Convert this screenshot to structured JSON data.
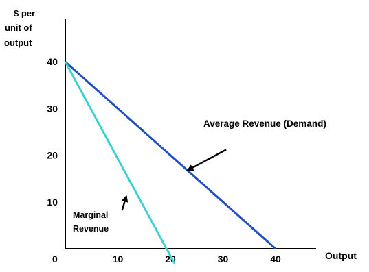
{
  "chart_data": {
    "type": "line",
    "ylabel": [
      "$ per",
      "unit of",
      "output"
    ],
    "xlabel": "Output",
    "origin_label": "0",
    "x_ticks": [
      {
        "value": 10,
        "label": "10"
      },
      {
        "value": 20,
        "label": "20"
      },
      {
        "value": 30,
        "label": "30"
      },
      {
        "value": 40,
        "label": "40"
      }
    ],
    "y_ticks": [
      {
        "value": 10,
        "label": "10"
      },
      {
        "value": 20,
        "label": "20"
      },
      {
        "value": 30,
        "label": "30"
      },
      {
        "value": 40,
        "label": "40"
      }
    ],
    "xlim": [
      0,
      44
    ],
    "ylim": [
      0,
      43
    ],
    "grid": false,
    "series": [
      {
        "key": "average-revenue",
        "name": "Average Revenue (Demand)",
        "color": "#1f4fc4",
        "points": [
          [
            0,
            40
          ],
          [
            40,
            0
          ]
        ]
      },
      {
        "key": "marginal-revenue",
        "name": "Marginal Revenue",
        "color": "#3fd1d1",
        "points": [
          [
            0,
            40
          ],
          [
            20.8,
            -3.2
          ]
        ]
      }
    ],
    "annotations": [
      {
        "key": "average-revenue-label",
        "lines": [
          "Average Revenue (Demand)"
        ],
        "arrow_from": [
          30.6,
          21.2
        ],
        "arrow_to": [
          23.3,
          16.8
        ]
      },
      {
        "key": "marginal-revenue-label",
        "lines": [
          "Marginal",
          "Revenue"
        ],
        "arrow_from": [
          10.8,
          8.2
        ],
        "arrow_to": [
          11.6,
          11.2
        ]
      }
    ]
  }
}
